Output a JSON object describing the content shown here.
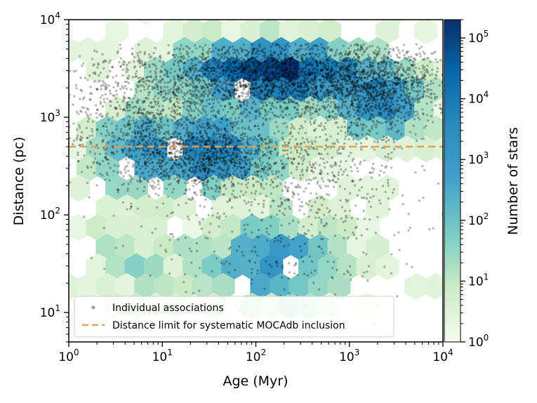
{
  "chart_data": {
    "type": "hexbin-scatter",
    "xlabel": "Age (Myr)",
    "ylabel": "Distance (pc)",
    "colorbar_label": "Number of stars",
    "x_scale": "log",
    "y_scale": "log",
    "xlim": [
      1,
      10000
    ],
    "ylim": [
      5,
      10000
    ],
    "color_lim": [
      1,
      200000
    ],
    "x_ticks": [
      {
        "base": "10",
        "exp": "0",
        "value": 1
      },
      {
        "base": "10",
        "exp": "1",
        "value": 10
      },
      {
        "base": "10",
        "exp": "2",
        "value": 100
      },
      {
        "base": "10",
        "exp": "3",
        "value": 1000
      },
      {
        "base": "10",
        "exp": "4",
        "value": 10000
      }
    ],
    "y_ticks": [
      {
        "base": "10",
        "exp": "1",
        "value": 10
      },
      {
        "base": "10",
        "exp": "2",
        "value": 100
      },
      {
        "base": "10",
        "exp": "3",
        "value": 1000
      },
      {
        "base": "10",
        "exp": "4",
        "value": 10000
      }
    ],
    "colorbar_ticks": [
      {
        "base": "10",
        "exp": "0",
        "value": 1
      },
      {
        "base": "10",
        "exp": "1",
        "value": 10
      },
      {
        "base": "10",
        "exp": "2",
        "value": 100
      },
      {
        "base": "10",
        "exp": "3",
        "value": 1000
      },
      {
        "base": "10",
        "exp": "4",
        "value": 10000
      },
      {
        "base": "10",
        "exp": "5",
        "value": 100000
      }
    ],
    "colormap": [
      "#f7fcf0",
      "#ccebc5",
      "#7bccc4",
      "#43a2ca",
      "#2b8cbe",
      "#0868ac",
      "#08306b"
    ],
    "reference_line": {
      "distance_pc": 500,
      "color": "#e0a05a"
    },
    "legend": {
      "position": "lower-left",
      "entries": [
        {
          "label": "Individual associations",
          "marker": "dot",
          "color": "#9a9a9a"
        },
        {
          "label": "Distance limit for systematic MOCAdb inclusion",
          "marker": "dashed-line",
          "color": "#e0a05a"
        }
      ]
    },
    "density_regions": [
      {
        "age_range": [
          2,
          3000
        ],
        "distance_range": [
          1500,
          4500
        ],
        "level": "very high"
      },
      {
        "age_range": [
          3,
          300
        ],
        "distance_range": [
          150,
          1500
        ],
        "level": "high"
      },
      {
        "age_range": [
          15,
          1000
        ],
        "distance_range": [
          8,
          150
        ],
        "level": "medium"
      },
      {
        "age_range": [
          1,
          15
        ],
        "distance_range": [
          8,
          100
        ],
        "level": "low"
      }
    ]
  }
}
